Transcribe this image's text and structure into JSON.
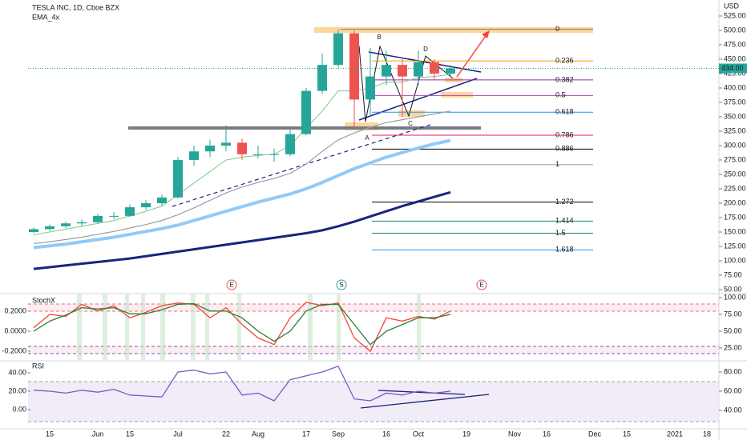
{
  "chart_data": [
    {
      "type": "candlestick",
      "title": "TESLA INC, 1D, Cboe BZX",
      "indicator": "EMA_4x",
      "currency": "USD",
      "categories": [
        null,
        "15",
        null,
        null,
        "Jun",
        null,
        "15",
        null,
        null,
        "Jul",
        null,
        null,
        "22",
        null,
        "Aug",
        null,
        null,
        "17",
        null,
        "Sep",
        null,
        null,
        "16",
        null,
        "Oct",
        null,
        null,
        "19",
        null,
        null,
        "Nov",
        null,
        "16",
        null,
        null,
        "Dec",
        null,
        "15",
        null,
        null,
        "2021",
        null,
        "18"
      ],
      "open": [
        150,
        155,
        160,
        165,
        167,
        178,
        178,
        193,
        200,
        210,
        275,
        290,
        300,
        305,
        285,
        285,
        285,
        320,
        395,
        440,
        495,
        380,
        420,
        440,
        420,
        445,
        425,
        null,
        null,
        null,
        null,
        null,
        null,
        null,
        null,
        null,
        null,
        null,
        null,
        null,
        null,
        null,
        null
      ],
      "high": [
        158,
        163,
        168,
        172,
        182,
        185,
        198,
        205,
        215,
        280,
        300,
        310,
        335,
        312,
        300,
        295,
        330,
        400,
        460,
        502,
        500,
        470,
        465,
        450,
        465,
        450,
        440,
        null,
        null,
        null,
        null,
        null,
        null,
        null,
        null,
        null,
        null,
        null,
        null,
        null,
        null,
        null,
        null
      ],
      "low": [
        148,
        152,
        157,
        160,
        165,
        172,
        176,
        188,
        195,
        208,
        265,
        280,
        290,
        275,
        278,
        272,
        282,
        318,
        390,
        435,
        330,
        350,
        405,
        350,
        405,
        415,
        420,
        null,
        null,
        null,
        null,
        null,
        null,
        null,
        null,
        null,
        null,
        null,
        null,
        null,
        null,
        null,
        null
      ],
      "close": [
        155,
        160,
        165,
        167,
        178,
        178,
        193,
        200,
        210,
        275,
        290,
        300,
        305,
        285,
        285,
        285,
        320,
        395,
        440,
        495,
        380,
        420,
        440,
        420,
        445,
        425,
        434,
        null,
        null,
        null,
        null,
        null,
        null,
        null,
        null,
        null,
        null,
        null,
        null,
        null,
        null,
        null,
        null
      ],
      "up_color": "#26a69a",
      "down_color": "#ef5350",
      "series": [
        {
          "color": "#81c784",
          "values": [
            145,
            150,
            155,
            160,
            165,
            170,
            178,
            186,
            195,
            215,
            235,
            255,
            275,
            280,
            283,
            285,
            300,
            330,
            360,
            395,
            395,
            400,
            410,
            410,
            418,
            420,
            424,
            null,
            null,
            null,
            null,
            null,
            null,
            null,
            null,
            null,
            null,
            null,
            null,
            null,
            null,
            null,
            null
          ]
        },
        {
          "color": "#9e9e9e",
          "values": [
            130,
            133,
            137,
            141,
            146,
            151,
            157,
            163,
            170,
            180,
            192,
            205,
            218,
            228,
            236,
            243,
            252,
            268,
            290,
            310,
            322,
            332,
            340,
            345,
            350,
            355,
            360,
            null,
            null,
            null,
            null,
            null,
            null,
            null,
            null,
            null,
            null,
            null,
            null,
            null,
            null,
            null,
            null
          ]
        },
        {
          "color": "#90caf9",
          "values": [
            123,
            126,
            129,
            133,
            137,
            141,
            146,
            151,
            156,
            162,
            170,
            178,
            186,
            194,
            202,
            209,
            216,
            225,
            236,
            248,
            260,
            270,
            280,
            288,
            296,
            303,
            309,
            null,
            null,
            null,
            null,
            null,
            null,
            null,
            null,
            null,
            null,
            null,
            null,
            null,
            null,
            null,
            null
          ]
        },
        {
          "color": "#1a237e",
          "values": [
            86,
            89,
            92,
            95,
            98,
            101,
            104,
            108,
            112,
            116,
            120,
            124,
            128,
            132,
            136,
            140,
            144,
            148,
            153,
            160,
            168,
            177,
            186,
            195,
            203,
            211,
            219,
            null,
            null,
            null,
            null,
            null,
            null,
            null,
            null,
            null,
            null,
            null,
            null,
            null,
            null,
            null,
            null
          ]
        }
      ],
      "ylim": [
        44.5,
        545.8
      ],
      "yticks": [
        {
          "value": 50,
          "label": "50.00"
        },
        {
          "value": 75,
          "label": "75.00"
        },
        {
          "value": 100,
          "label": "100.00"
        },
        {
          "value": 125,
          "label": "125.00"
        },
        {
          "value": 150,
          "label": "150.00"
        },
        {
          "value": 175,
          "label": "175.00"
        },
        {
          "value": 200,
          "label": "200.00"
        },
        {
          "value": 225,
          "label": "225.00"
        },
        {
          "value": 250,
          "label": "250.00"
        },
        {
          "value": 275,
          "label": "275.00"
        },
        {
          "value": 300,
          "label": "300.00"
        },
        {
          "value": 325,
          "label": "325.00"
        },
        {
          "value": 350,
          "label": "350.00"
        },
        {
          "value": 375,
          "label": "375.00"
        },
        {
          "value": 400,
          "label": "400.00"
        },
        {
          "value": 425,
          "label": "425.00"
        },
        {
          "value": 450,
          "label": "450.00"
        },
        {
          "value": 475,
          "label": "475.00"
        },
        {
          "value": 500,
          "label": "500.00"
        },
        {
          "value": 525,
          "label": "525.00"
        }
      ],
      "last_price": {
        "value": 434,
        "label": "434.00"
      },
      "fib_levels": [
        {
          "level": 0,
          "price": 502,
          "color": "#787b86"
        },
        {
          "level": 0.236,
          "price": 447,
          "color": "#ff9800"
        },
        {
          "level": 0.382,
          "price": 414,
          "color": "#9c27b0"
        },
        {
          "level": 0.5,
          "price": 387,
          "color": "#ab47bc"
        },
        {
          "level": 0.618,
          "price": 358,
          "color": "#2196f3"
        },
        {
          "level": 0.786,
          "price": 318,
          "color": "#e91e63"
        },
        {
          "level": 0.886,
          "price": 294,
          "color": "#000000"
        },
        {
          "level": 1,
          "price": 267,
          "color": "#9e9e9e"
        },
        {
          "level": 1.272,
          "price": 202,
          "color": "#000000"
        },
        {
          "level": 1.414,
          "price": 169,
          "color": "#00897b"
        },
        {
          "level": 1.5,
          "price": 148,
          "color": "#00897b"
        },
        {
          "level": 1.618,
          "price": 119,
          "color": "#2196f3"
        }
      ],
      "pattern_labels": [
        "B",
        "D",
        "A",
        "C"
      ],
      "event_markers": [
        "E",
        "S",
        "E"
      ]
    },
    {
      "type": "line",
      "title": "StochX",
      "series": [
        {
          "color": "#f44336",
          "axis": "y2",
          "values": [
            55,
            75,
            72,
            90,
            80,
            88,
            70,
            78,
            88,
            92,
            90,
            70,
            85,
            60,
            40,
            30,
            70,
            93,
            88,
            92,
            40,
            20,
            70,
            65,
            72,
            68,
            80,
            null,
            null,
            null,
            null,
            null,
            null,
            null,
            null,
            null,
            null,
            null,
            null,
            null,
            null,
            null,
            null
          ]
        },
        {
          "color": "#2e7d32",
          "axis": "y2",
          "values": [
            50,
            65,
            74,
            85,
            83,
            85,
            76,
            76,
            82,
            90,
            91,
            80,
            80,
            70,
            50,
            35,
            50,
            80,
            90,
            90,
            60,
            30,
            50,
            60,
            70,
            70,
            75,
            null,
            null,
            null,
            null,
            null,
            null,
            null,
            null,
            null,
            null,
            null,
            null,
            null,
            null,
            null,
            null
          ]
        }
      ],
      "ylim": [
        -0.288,
        0.368
      ],
      "yticks": [
        {
          "value": 0.2,
          "label": "0.2000"
        },
        {
          "value": 0,
          "label": "0.0000"
        },
        {
          "value": -0.2,
          "label": "-0.2000"
        }
      ],
      "y2lim": [
        7.1,
        104.8
      ],
      "y2ticks": [
        {
          "value": 100,
          "label": "100.00"
        },
        {
          "value": 75,
          "label": "75.00"
        },
        {
          "value": 50,
          "label": "50.00"
        },
        {
          "value": 25,
          "label": "25.00"
        }
      ]
    },
    {
      "type": "line",
      "title": "RSI",
      "series": [
        {
          "color": "#7e57c2",
          "axis": "y2",
          "values": [
            61,
            60,
            58,
            61,
            59,
            62,
            56,
            55,
            54,
            80,
            82,
            78,
            80,
            56,
            58,
            50,
            72,
            76,
            80,
            86,
            52,
            50,
            58,
            56,
            60,
            58,
            60,
            null,
            null,
            null,
            null,
            null,
            null,
            null,
            null,
            null,
            null,
            null,
            null,
            null,
            null,
            null,
            null
          ]
        }
      ],
      "ylim": [
        -20,
        52.2
      ],
      "yticks": [
        {
          "value": 40,
          "label": "40.00"
        },
        {
          "value": 20,
          "label": "20.00"
        },
        {
          "value": 0,
          "label": "0.00"
        }
      ],
      "y2lim": [
        21.7,
        90.8
      ],
      "y2ticks": [
        {
          "value": 80,
          "label": "80.00"
        },
        {
          "value": 60,
          "label": "60.00"
        },
        {
          "value": 40,
          "label": "40.00"
        }
      ]
    }
  ]
}
